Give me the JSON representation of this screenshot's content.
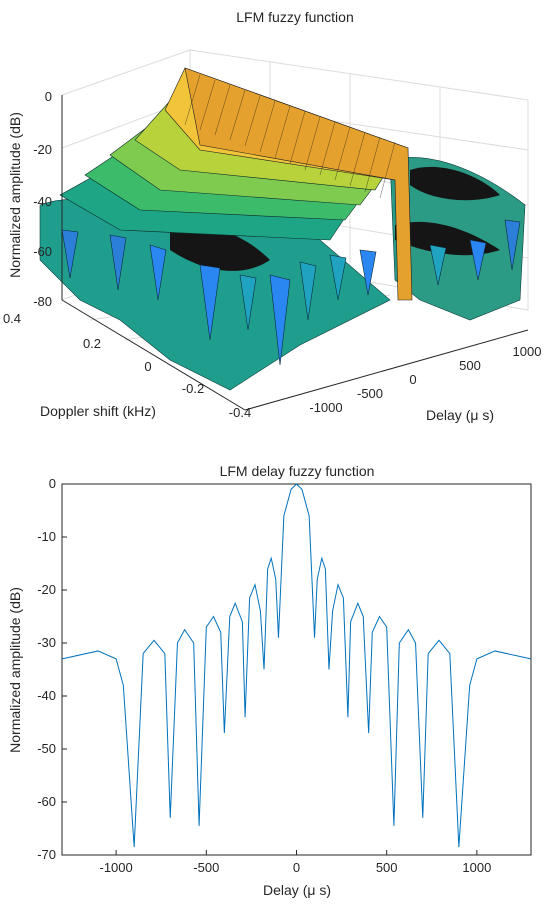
{
  "chart_data": [
    {
      "type": "surface",
      "title": "LFM fuzzy function",
      "xlabel": "Delay (μ s)",
      "ylabel": "Doppler shift (kHz)",
      "zlabel": "Normalized amplitude (dB)",
      "x_ticks": [
        "-1000",
        "-500",
        "0",
        "500",
        "1000"
      ],
      "y_ticks": [
        "0.4",
        "0.2",
        "0",
        "-0.2",
        "-0.4"
      ],
      "z_ticks": [
        "0",
        "-20",
        "-40",
        "-60",
        "-80"
      ],
      "xlim": [
        -1250,
        1250
      ],
      "ylim": [
        -0.4,
        0.4
      ],
      "zlim": [
        -80,
        0
      ],
      "colormap": [
        "#3e26a8",
        "#2a86f0",
        "#1fb5b0",
        "#7ecb5b",
        "#f5e12c",
        "#f9fb0e"
      ],
      "grid": true
    },
    {
      "type": "line",
      "title": "LFM delay fuzzy function",
      "xlabel": "Delay (μ s)",
      "ylabel": "Normalized amplitude (dB)",
      "xlim": [
        -1300,
        1300
      ],
      "ylim": [
        -70,
        0
      ],
      "x_ticks": [
        "-1000",
        "-500",
        "0",
        "500",
        "1000"
      ],
      "y_ticks": [
        "0",
        "-10",
        "-20",
        "-30",
        "-40",
        "-50",
        "-60",
        "-70"
      ],
      "line_color": "#0072bd",
      "series": [
        {
          "x": [
            -1300,
            -1100,
            -1000,
            -960,
            -900,
            -850,
            -790,
            -730,
            -700,
            -660,
            -620,
            -570,
            -540,
            -500,
            -460,
            -420,
            -400,
            -370,
            -340,
            -300,
            -285,
            -260,
            -230,
            -200,
            -180,
            -160,
            -140,
            -115,
            -100,
            -70,
            -30,
            0,
            30,
            70,
            100,
            115,
            140,
            160,
            180,
            200,
            230,
            260,
            285,
            300,
            340,
            370,
            400,
            420,
            460,
            500,
            540,
            570,
            620,
            660,
            700,
            730,
            790,
            850,
            900,
            960,
            1000,
            1100,
            1300
          ],
          "y": [
            -33,
            -31.5,
            -33,
            -38,
            -68.5,
            -32,
            -29.5,
            -32,
            -63,
            -30,
            -27.5,
            -30,
            -64.5,
            -27,
            -25,
            -28,
            -47,
            -25,
            -22.5,
            -26,
            -44,
            -21.5,
            -19,
            -24,
            -35,
            -16,
            -14,
            -18,
            -29,
            -6,
            -1,
            0,
            -1,
            -6,
            -29,
            -18,
            -14,
            -16,
            -35,
            -24,
            -19,
            -21.5,
            -44,
            -26,
            -22.5,
            -25,
            -47,
            -28,
            -25,
            -27,
            -64.5,
            -30,
            -27.5,
            -30,
            -63,
            -32,
            -29.5,
            -32,
            -68.5,
            -38,
            -33,
            -31.5,
            -33
          ]
        }
      ]
    }
  ]
}
